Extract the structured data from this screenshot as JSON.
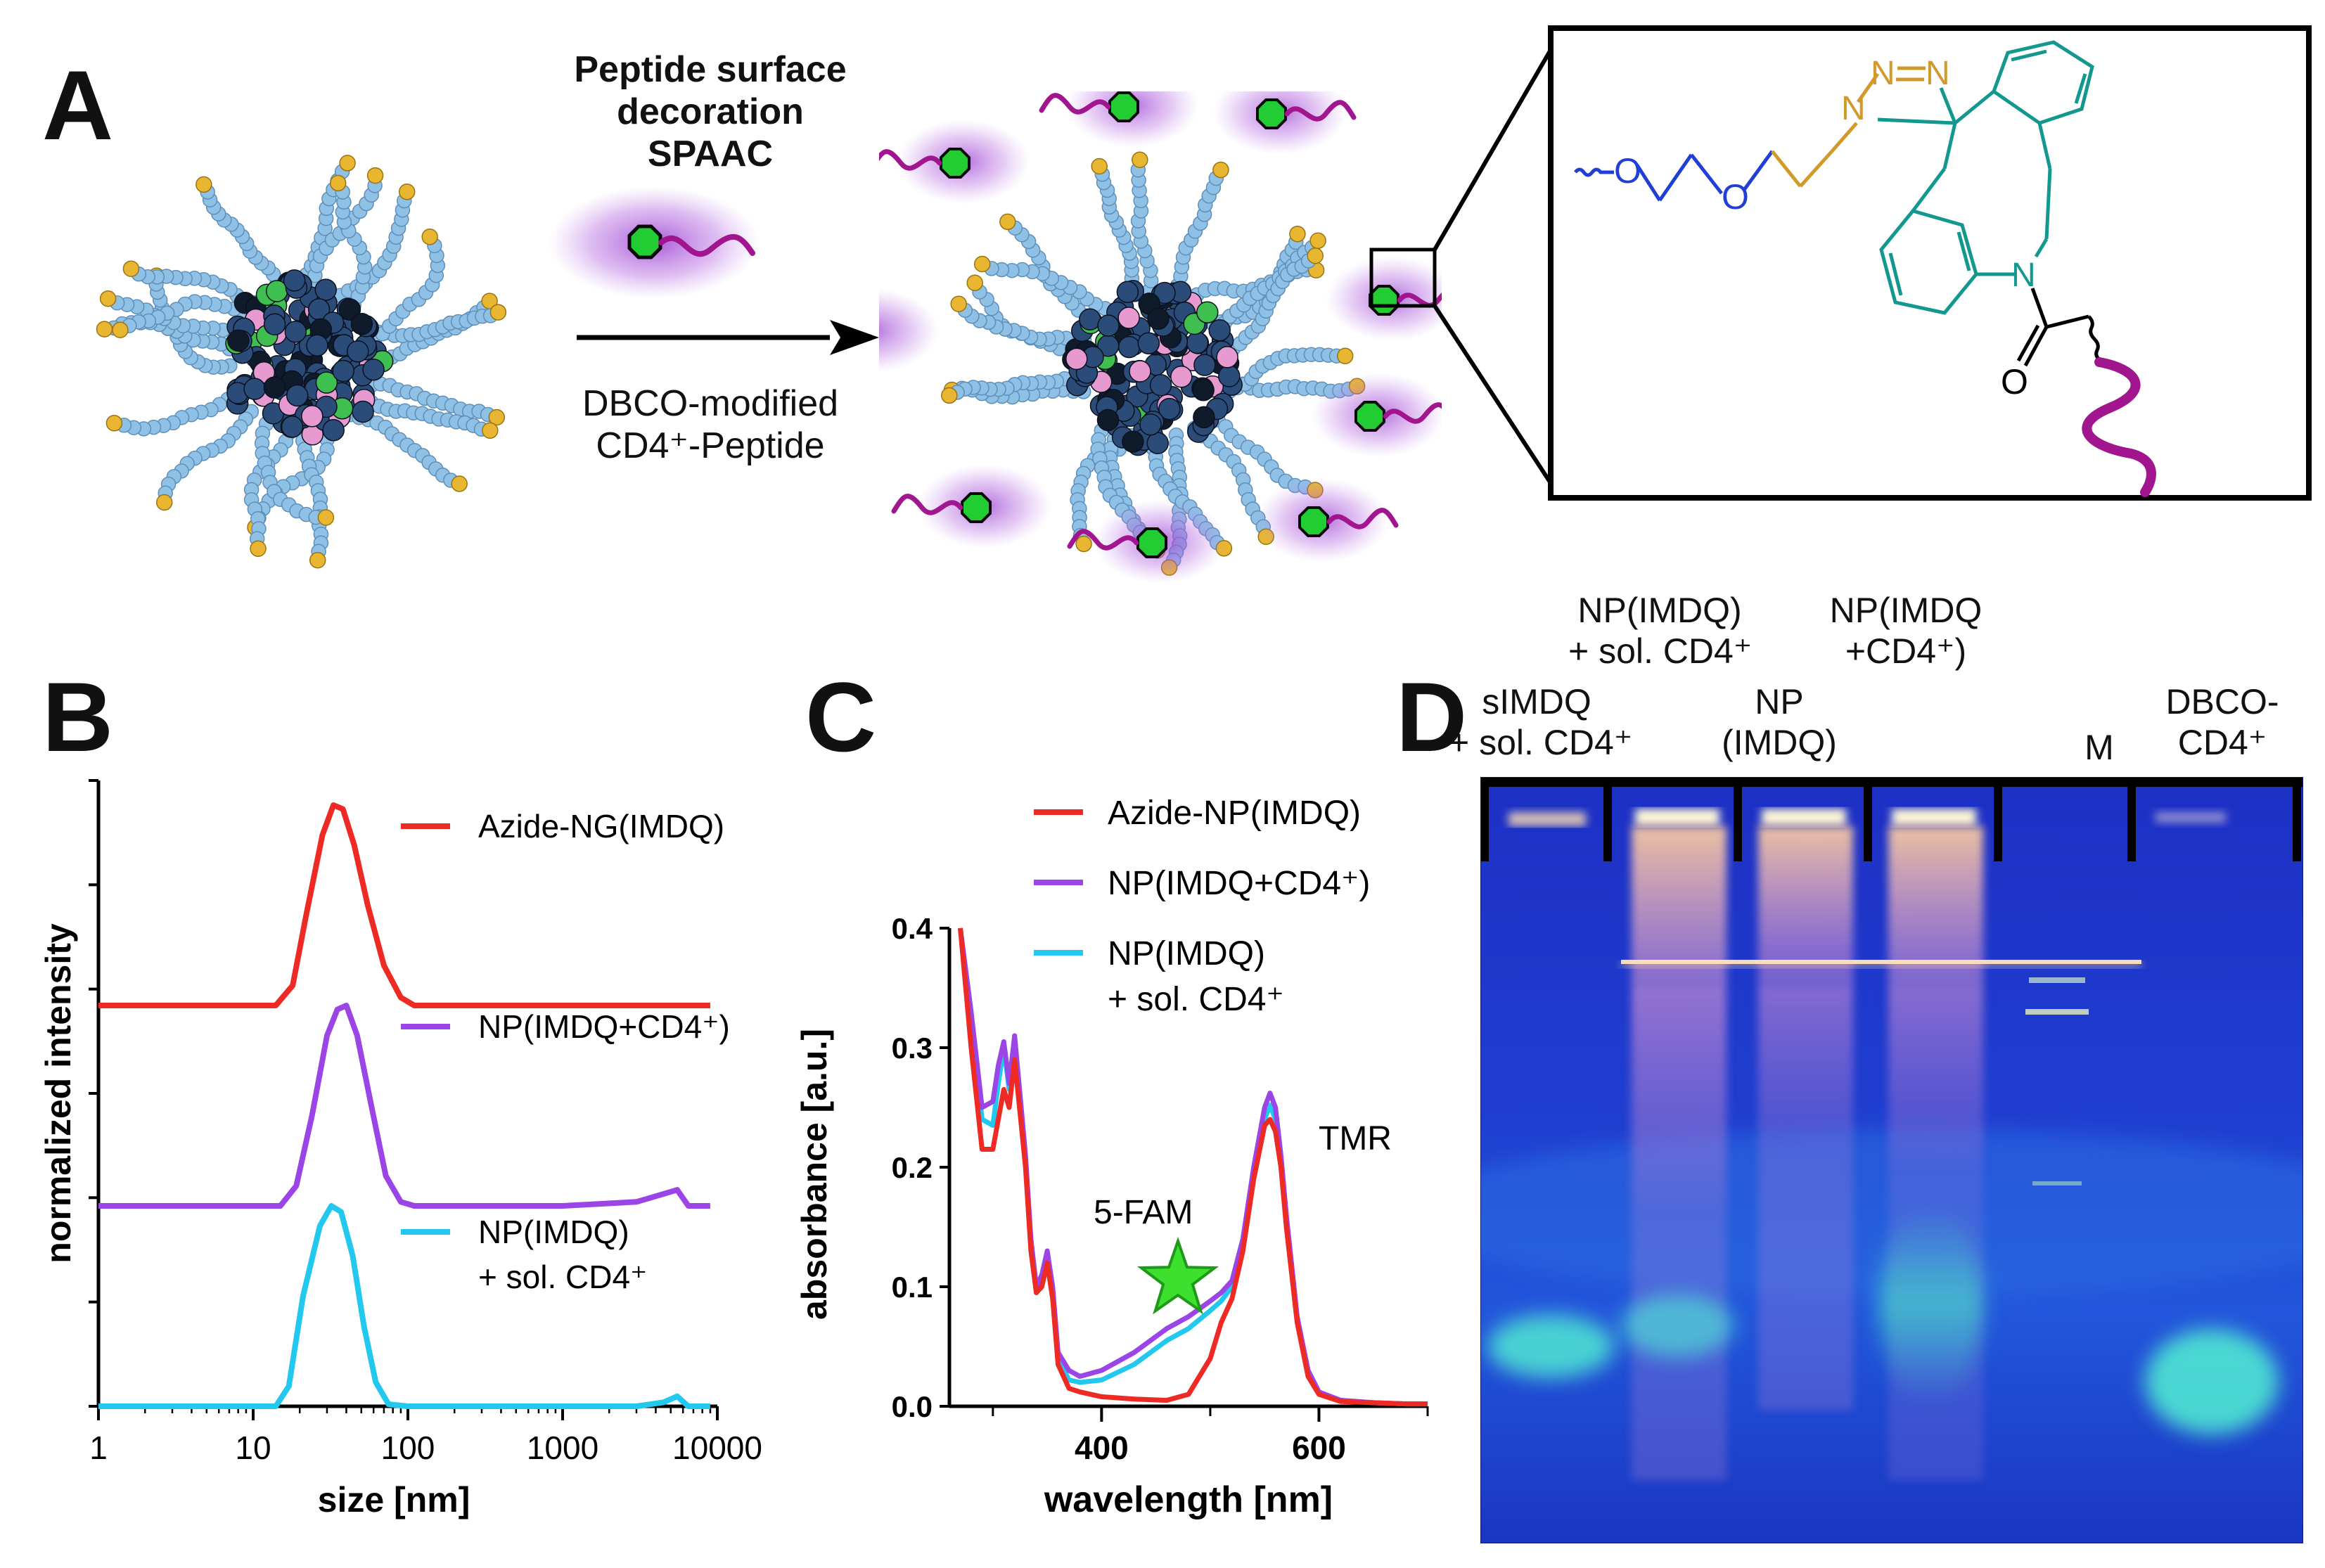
{
  "panel_a": {
    "letter": "A",
    "arrow_title_lines": [
      "Peptide surface",
      "decoration",
      "SPAAC"
    ],
    "arrow_sub_lines": [
      "DBCO-modified",
      "CD4⁺-Peptide"
    ],
    "chem_atoms": {
      "o1": "O",
      "o2": "O",
      "n_triazole1": "N",
      "n_triazole2": "N",
      "n_triazole3": "N",
      "n_ring": "N",
      "o_carbonyl": "O"
    },
    "colors": {
      "peg": "#1f3fd6",
      "linker": "#d19a2a",
      "dbco": "#139890",
      "peptide": "#a1158f",
      "glow": "#b05ad8",
      "fluor": "#22cc33"
    }
  },
  "panel_b": {
    "letter": "B"
  },
  "panel_c": {
    "letter": "C",
    "annotations": {
      "fam": "5-FAM",
      "tmr": "TMR"
    }
  },
  "panel_d": {
    "letter": "D",
    "lanes": [
      {
        "lines": [
          "sIMDQ",
          "+ sol. CD4⁺"
        ]
      },
      {
        "lines": [
          "NP(IMDQ)",
          "+ sol. CD4⁺"
        ]
      },
      {
        "lines": [
          "NP",
          "(IMDQ)"
        ]
      },
      {
        "lines": [
          "NP(IMDQ",
          "+CD4⁺)"
        ]
      },
      {
        "lines": [
          "M"
        ]
      },
      {
        "lines": [
          "DBCO-",
          "CD4⁺"
        ]
      }
    ]
  },
  "chart_data": [
    {
      "panel": "B",
      "type": "line",
      "xlabel": "size [nm]",
      "ylabel": "normalized intensity",
      "x_scale": "log",
      "xlim": [
        1,
        10000
      ],
      "x_ticks": [
        "1",
        "10",
        "100",
        "1000",
        "10000"
      ],
      "stacked_offset": true,
      "legend_position": "right, beside each trace",
      "series": [
        {
          "name": "Azide-NG(IMDQ)",
          "color": "#ee2a24",
          "x": [
            1,
            14,
            18,
            22,
            28,
            33,
            38,
            45,
            55,
            70,
            90,
            110,
            150,
            1000,
            9000
          ],
          "values": [
            0,
            0,
            0.1,
            0.45,
            0.85,
            1.0,
            0.98,
            0.8,
            0.5,
            0.2,
            0.04,
            0,
            0,
            0,
            0
          ]
        },
        {
          "name": "NP(IMDQ+CD4⁺)",
          "color": "#9b45e6",
          "x": [
            1,
            15,
            19,
            24,
            30,
            35,
            40,
            47,
            58,
            72,
            90,
            110,
            150,
            1000,
            3000,
            4500,
            5500,
            6500,
            9000
          ],
          "values": [
            0,
            0,
            0.1,
            0.45,
            0.85,
            0.98,
            1.0,
            0.85,
            0.5,
            0.15,
            0.02,
            0,
            0,
            0,
            0.02,
            0.06,
            0.08,
            0,
            0
          ]
        },
        {
          "name": "NP(IMDQ)",
          "name_line2": "+ sol. CD4⁺",
          "color": "#22c8ee",
          "x": [
            1,
            14,
            17,
            21,
            27,
            32,
            37,
            44,
            52,
            62,
            75,
            100,
            1000,
            3000,
            4500,
            5500,
            6500,
            9000
          ],
          "values": [
            0,
            0,
            0.1,
            0.55,
            0.9,
            1.0,
            0.97,
            0.75,
            0.4,
            0.12,
            0.01,
            0,
            0,
            0,
            0.02,
            0.05,
            0,
            0
          ]
        }
      ]
    },
    {
      "panel": "C",
      "type": "line",
      "xlabel": "wavelength [nm]",
      "ylabel": "absorbance [a.u.]",
      "xlim": [
        260,
        700
      ],
      "ylim": [
        0,
        0.4
      ],
      "x_ticks": [
        "400",
        "600"
      ],
      "y_ticks": [
        "0.0",
        "0.1",
        "0.2",
        "0.3",
        "0.4"
      ],
      "legend_position": "top-right",
      "series": [
        {
          "name": "Azide-NP(IMDQ)",
          "color": "#ee2a24",
          "x": [
            270,
            280,
            290,
            300,
            305,
            310,
            315,
            320,
            325,
            330,
            335,
            340,
            345,
            350,
            355,
            360,
            370,
            380,
            400,
            430,
            460,
            480,
            500,
            510,
            520,
            530,
            540,
            550,
            555,
            560,
            565,
            570,
            580,
            590,
            600,
            620,
            650,
            680,
            700
          ],
          "values": [
            0.4,
            0.3,
            0.215,
            0.215,
            0.24,
            0.265,
            0.25,
            0.29,
            0.245,
            0.2,
            0.13,
            0.095,
            0.1,
            0.12,
            0.09,
            0.035,
            0.015,
            0.012,
            0.008,
            0.006,
            0.005,
            0.01,
            0.04,
            0.07,
            0.09,
            0.13,
            0.19,
            0.235,
            0.24,
            0.23,
            0.2,
            0.15,
            0.07,
            0.025,
            0.01,
            0.004,
            0.003,
            0.002,
            0.002
          ]
        },
        {
          "name": "NP(IMDQ+CD4⁺)",
          "color": "#9b45e6",
          "x": [
            270,
            280,
            290,
            300,
            305,
            310,
            315,
            320,
            325,
            330,
            335,
            340,
            345,
            350,
            355,
            360,
            370,
            380,
            400,
            430,
            460,
            480,
            500,
            510,
            520,
            530,
            540,
            550,
            555,
            560,
            565,
            570,
            580,
            590,
            600,
            620,
            650,
            680,
            700
          ],
          "values": [
            0.4,
            0.33,
            0.25,
            0.255,
            0.285,
            0.305,
            0.27,
            0.31,
            0.26,
            0.21,
            0.14,
            0.1,
            0.11,
            0.13,
            0.1,
            0.045,
            0.03,
            0.025,
            0.03,
            0.045,
            0.065,
            0.075,
            0.088,
            0.095,
            0.105,
            0.14,
            0.2,
            0.25,
            0.262,
            0.25,
            0.21,
            0.16,
            0.075,
            0.03,
            0.012,
            0.005,
            0.003,
            0.002,
            0.002
          ]
        },
        {
          "name": "NP(IMDQ)",
          "name_line2": "+ sol. CD4⁺",
          "color": "#22c8ee",
          "x": [
            270,
            280,
            290,
            300,
            305,
            310,
            315,
            320,
            325,
            330,
            335,
            340,
            345,
            350,
            355,
            360,
            370,
            380,
            400,
            430,
            460,
            480,
            500,
            510,
            520,
            530,
            540,
            550,
            555,
            560,
            565,
            570,
            580,
            590,
            600,
            620,
            650,
            680,
            700
          ],
          "values": [
            0.4,
            0.32,
            0.24,
            0.235,
            0.27,
            0.3,
            0.265,
            0.305,
            0.255,
            0.205,
            0.135,
            0.1,
            0.105,
            0.125,
            0.095,
            0.04,
            0.022,
            0.02,
            0.022,
            0.035,
            0.055,
            0.065,
            0.08,
            0.088,
            0.1,
            0.135,
            0.19,
            0.24,
            0.252,
            0.24,
            0.205,
            0.155,
            0.072,
            0.028,
            0.011,
            0.005,
            0.003,
            0.002,
            0.002
          ]
        }
      ]
    }
  ]
}
